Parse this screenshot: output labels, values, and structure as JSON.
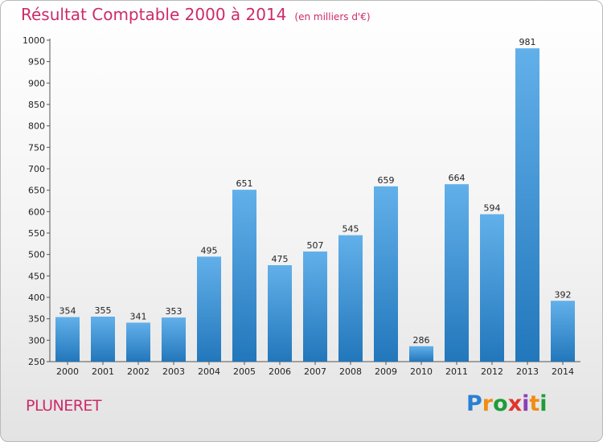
{
  "header": {
    "title": "Résultat Comptable 2000 à 2014",
    "subtitle": "(en milliers d'€)"
  },
  "footer": {
    "commune": "PLUNERET",
    "logo_text": "Proxiti"
  },
  "colors": {
    "accent": "#cc2b6a",
    "bar_top": "#62b0ea",
    "bar_bottom": "#2277bb"
  },
  "chart_data": {
    "type": "bar",
    "title": "Résultat Comptable 2000 à 2014",
    "subtitle": "(en milliers d'€)",
    "xlabel": "",
    "ylabel": "",
    "categories": [
      "2000",
      "2001",
      "2002",
      "2003",
      "2004",
      "2005",
      "2006",
      "2007",
      "2008",
      "2009",
      "2010",
      "2011",
      "2012",
      "2013",
      "2014"
    ],
    "values": [
      354,
      355,
      341,
      353,
      495,
      651,
      475,
      507,
      545,
      659,
      286,
      664,
      594,
      981,
      392
    ],
    "ylim": [
      250,
      1000
    ],
    "yticks": [
      250,
      300,
      350,
      400,
      450,
      500,
      550,
      600,
      650,
      700,
      750,
      800,
      850,
      900,
      950,
      1000
    ],
    "grid": false,
    "legend": "none"
  }
}
